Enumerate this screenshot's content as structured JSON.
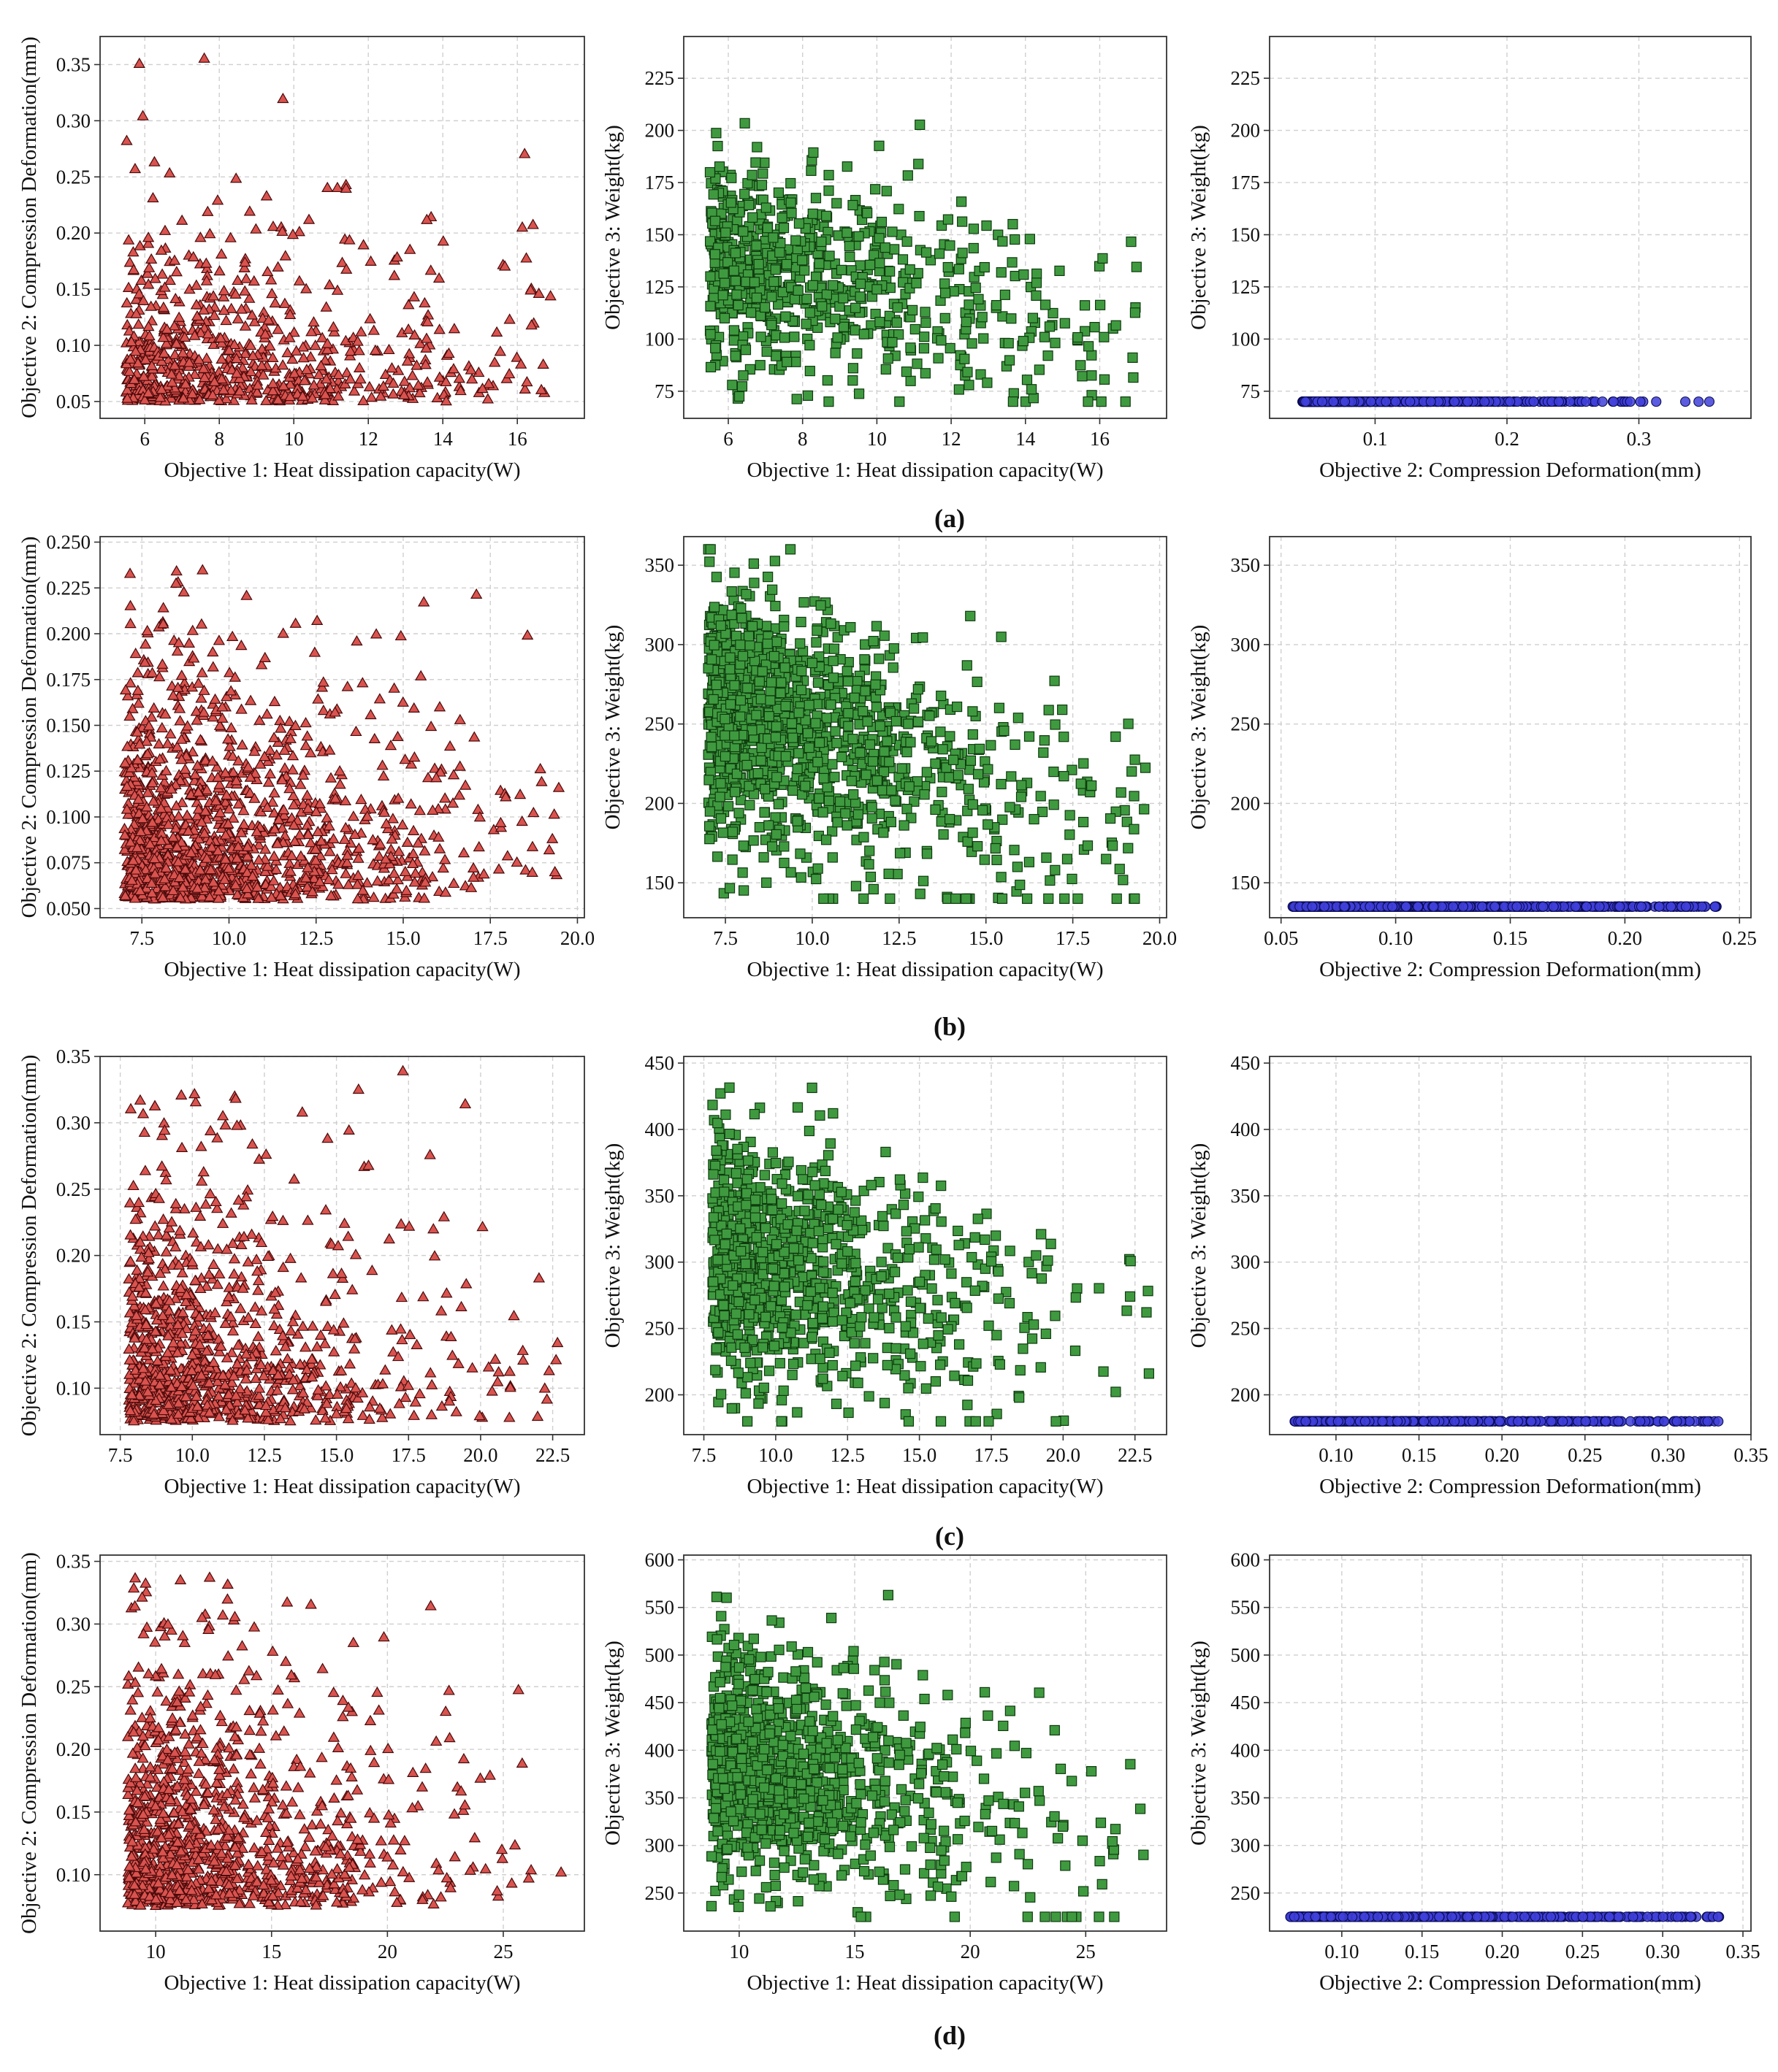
{
  "figure": {
    "rows": [
      {
        "label": "(a)"
      },
      {
        "label": "(b)"
      },
      {
        "label": "(c)"
      },
      {
        "label": "(d)"
      }
    ]
  },
  "colors": {
    "triangle_fill": "#d9534f",
    "triangle_edge": "#4a0a0a",
    "square_fill": "#3f9a3f",
    "square_edge": "#0f3a0f",
    "circle_fill": "#3f3fd9",
    "circle_edge": "#0a0a55",
    "grid": "#cfcfcf",
    "frame": "#333333"
  },
  "chart_data": [
    {
      "id": "a1",
      "row": 0,
      "col": 0,
      "type": "scatter",
      "marker": "triangle",
      "xlabel": "Objective 1: Heat dissipation capacity(W)",
      "ylabel": "Objective 2: Compression Deformation(mm)",
      "xlim": [
        4.8,
        17.8
      ],
      "ylim": [
        0.035,
        0.375
      ],
      "xticks": [
        {
          "v": 6,
          "t": "6"
        },
        {
          "v": 8,
          "t": "8"
        },
        {
          "v": 10,
          "t": "10"
        },
        {
          "v": 12,
          "t": "12"
        },
        {
          "v": 14,
          "t": "14"
        },
        {
          "v": 16,
          "t": "16"
        }
      ],
      "yticks": [
        {
          "v": 0.05,
          "t": "0.05"
        },
        {
          "v": 0.1,
          "t": "0.10"
        },
        {
          "v": 0.15,
          "t": "0.15"
        },
        {
          "v": 0.2,
          "t": "0.20"
        },
        {
          "v": 0.25,
          "t": "0.25"
        },
        {
          "v": 0.3,
          "t": "0.30"
        },
        {
          "v": 0.35,
          "t": "0.35"
        }
      ],
      "gen": {
        "kind": "scatter13",
        "n": 750,
        "seed": 11,
        "xmin": 5.5,
        "xmax": 17.0,
        "ymin": 0.05,
        "ymax": 0.36,
        "xdecay": 4.0,
        "ydecay": 0.05
      }
    },
    {
      "id": "a2",
      "row": 0,
      "col": 1,
      "type": "scatter",
      "marker": "square",
      "xlabel": "Objective 1: Heat dissipation capacity(W)",
      "ylabel": "Objective 3: Weight(kg)",
      "xlim": [
        4.8,
        17.8
      ],
      "ylim": [
        62,
        245
      ],
      "xticks": [
        {
          "v": 6,
          "t": "6"
        },
        {
          "v": 8,
          "t": "8"
        },
        {
          "v": 10,
          "t": "10"
        },
        {
          "v": 12,
          "t": "12"
        },
        {
          "v": 14,
          "t": "14"
        },
        {
          "v": 16,
          "t": "16"
        }
      ],
      "yticks": [
        {
          "v": 75,
          "t": "75"
        },
        {
          "v": 100,
          "t": "100"
        },
        {
          "v": 125,
          "t": "125"
        },
        {
          "v": 150,
          "t": "150"
        },
        {
          "v": 175,
          "t": "175"
        },
        {
          "v": 200,
          "t": "200"
        },
        {
          "v": 225,
          "t": "225"
        }
      ],
      "gen": {
        "kind": "scatter12",
        "n": 750,
        "seed": 12,
        "xmin": 5.5,
        "xmax": 17.0,
        "xdecay": 4.0,
        "ybase": 140,
        "yslope": -3.5,
        "ysd": 24,
        "ymin": 70,
        "ymax": 240
      }
    },
    {
      "id": "a3",
      "row": 0,
      "col": 2,
      "type": "scatter",
      "marker": "circle",
      "xlabel": "Objective 2: Compression Deformation(mm)",
      "ylabel": "Objective 3: Weight(kg)",
      "xlim": [
        0.02,
        0.385
      ],
      "ylim": [
        62,
        245
      ],
      "xticks": [
        {
          "v": 0.1,
          "t": "0.1"
        },
        {
          "v": 0.2,
          "t": "0.2"
        },
        {
          "v": 0.3,
          "t": "0.3"
        }
      ],
      "yticks": [
        {
          "v": 75,
          "t": "75"
        },
        {
          "v": 100,
          "t": "100"
        },
        {
          "v": 125,
          "t": "125"
        },
        {
          "v": 150,
          "t": "150"
        },
        {
          "v": 175,
          "t": "175"
        },
        {
          "v": 200,
          "t": "200"
        },
        {
          "v": 225,
          "t": "225"
        }
      ],
      "gen": {
        "kind": "front",
        "n": 900,
        "seed": 13,
        "xmin": 0.045,
        "xmax": 0.36,
        "xdecay": 0.06,
        "k": 10.5,
        "ymin": 70,
        "ymax": 240,
        "band": 0.12
      }
    },
    {
      "id": "b1",
      "row": 1,
      "col": 0,
      "type": "scatter",
      "marker": "triangle",
      "xlabel": "Objective 1: Heat dissipation capacity(W)",
      "ylabel": "Objective 2: Compression Deformation(mm)",
      "xlim": [
        6.3,
        20.2
      ],
      "ylim": [
        0.045,
        0.253
      ],
      "xticks": [
        {
          "v": 7.5,
          "t": "7.5"
        },
        {
          "v": 10.0,
          "t": "10.0"
        },
        {
          "v": 12.5,
          "t": "12.5"
        },
        {
          "v": 15.0,
          "t": "15.0"
        },
        {
          "v": 17.5,
          "t": "17.5"
        },
        {
          "v": 20.0,
          "t": "20.0"
        }
      ],
      "yticks": [
        {
          "v": 0.05,
          "t": "0.050"
        },
        {
          "v": 0.075,
          "t": "0.075"
        },
        {
          "v": 0.1,
          "t": "0.100"
        },
        {
          "v": 0.125,
          "t": "0.125"
        },
        {
          "v": 0.15,
          "t": "0.150"
        },
        {
          "v": 0.175,
          "t": "0.175"
        },
        {
          "v": 0.2,
          "t": "0.200"
        },
        {
          "v": 0.225,
          "t": "0.225"
        },
        {
          "v": 0.25,
          "t": "0.250"
        }
      ],
      "gen": {
        "kind": "scatter13",
        "n": 1300,
        "seed": 21,
        "xmin": 7.0,
        "xmax": 19.6,
        "ymin": 0.055,
        "ymax": 0.24,
        "xdecay": 3.5,
        "ydecay": 0.045
      }
    },
    {
      "id": "b2",
      "row": 1,
      "col": 1,
      "type": "scatter",
      "marker": "square",
      "xlabel": "Objective 1: Heat dissipation capacity(W)",
      "ylabel": "Objective 3: Weight(kg)",
      "xlim": [
        6.3,
        20.2
      ],
      "ylim": [
        128,
        368
      ],
      "xticks": [
        {
          "v": 7.5,
          "t": "7.5"
        },
        {
          "v": 10.0,
          "t": "10.0"
        },
        {
          "v": 12.5,
          "t": "12.5"
        },
        {
          "v": 15.0,
          "t": "15.0"
        },
        {
          "v": 17.5,
          "t": "17.5"
        },
        {
          "v": 20.0,
          "t": "20.0"
        }
      ],
      "yticks": [
        {
          "v": 150,
          "t": "150"
        },
        {
          "v": 200,
          "t": "200"
        },
        {
          "v": 250,
          "t": "250"
        },
        {
          "v": 300,
          "t": "300"
        },
        {
          "v": 350,
          "t": "350"
        }
      ],
      "gen": {
        "kind": "scatter12",
        "n": 1300,
        "seed": 22,
        "xmin": 7.0,
        "xmax": 19.6,
        "xdecay": 3.5,
        "ybase": 265,
        "yslope": -7.0,
        "ysd": 38,
        "ymin": 140,
        "ymax": 360
      }
    },
    {
      "id": "b3",
      "row": 1,
      "col": 2,
      "type": "scatter",
      "marker": "circle",
      "xlabel": "Objective 2: Compression Deformation(mm)",
      "ylabel": "Objective 3: Weight(kg)",
      "xlim": [
        0.045,
        0.255
      ],
      "ylim": [
        128,
        368
      ],
      "xticks": [
        {
          "v": 0.05,
          "t": "0.05"
        },
        {
          "v": 0.1,
          "t": "0.10"
        },
        {
          "v": 0.15,
          "t": "0.15"
        },
        {
          "v": 0.2,
          "t": "0.20"
        },
        {
          "v": 0.25,
          "t": "0.25"
        }
      ],
      "yticks": [
        {
          "v": 150,
          "t": "150"
        },
        {
          "v": 200,
          "t": "200"
        },
        {
          "v": 250,
          "t": "250"
        },
        {
          "v": 300,
          "t": "300"
        },
        {
          "v": 350,
          "t": "350"
        }
      ],
      "gen": {
        "kind": "front",
        "n": 1300,
        "seed": 23,
        "xmin": 0.055,
        "xmax": 0.24,
        "xdecay": 0.06,
        "k": 19.0,
        "ymin": 135,
        "ymax": 360,
        "band": 0.09
      }
    },
    {
      "id": "c1",
      "row": 2,
      "col": 0,
      "type": "scatter",
      "marker": "triangle",
      "xlabel": "Objective 1: Heat dissipation capacity(W)",
      "ylabel": "Objective 2: Compression Deformation(mm)",
      "xlim": [
        6.8,
        23.6
      ],
      "ylim": [
        0.065,
        0.35
      ],
      "xticks": [
        {
          "v": 7.5,
          "t": "7.5"
        },
        {
          "v": 10.0,
          "t": "10.0"
        },
        {
          "v": 12.5,
          "t": "12.5"
        },
        {
          "v": 15.0,
          "t": "15.0"
        },
        {
          "v": 17.5,
          "t": "17.5"
        },
        {
          "v": 20.0,
          "t": "20.0"
        },
        {
          "v": 22.5,
          "t": "22.5"
        }
      ],
      "yticks": [
        {
          "v": 0.1,
          "t": "0.10"
        },
        {
          "v": 0.15,
          "t": "0.15"
        },
        {
          "v": 0.2,
          "t": "0.20"
        },
        {
          "v": 0.25,
          "t": "0.25"
        },
        {
          "v": 0.3,
          "t": "0.30"
        },
        {
          "v": 0.35,
          "t": "0.35"
        }
      ],
      "gen": {
        "kind": "scatter13",
        "n": 1000,
        "seed": 31,
        "xmin": 7.8,
        "xmax": 23.0,
        "ymin": 0.075,
        "ymax": 0.34,
        "xdecay": 3.5,
        "ydecay": 0.06
      }
    },
    {
      "id": "c2",
      "row": 2,
      "col": 1,
      "type": "scatter",
      "marker": "square",
      "xlabel": "Objective 1: Heat dissipation capacity(W)",
      "ylabel": "Objective 3: Weight(kg)",
      "xlim": [
        6.8,
        23.6
      ],
      "ylim": [
        170,
        455
      ],
      "xticks": [
        {
          "v": 7.5,
          "t": "7.5"
        },
        {
          "v": 10.0,
          "t": "10.0"
        },
        {
          "v": 12.5,
          "t": "12.5"
        },
        {
          "v": 15.0,
          "t": "15.0"
        },
        {
          "v": 17.5,
          "t": "17.5"
        },
        {
          "v": 20.0,
          "t": "20.0"
        },
        {
          "v": 22.5,
          "t": "22.5"
        }
      ],
      "yticks": [
        {
          "v": 200,
          "t": "200"
        },
        {
          "v": 250,
          "t": "250"
        },
        {
          "v": 300,
          "t": "300"
        },
        {
          "v": 350,
          "t": "350"
        },
        {
          "v": 400,
          "t": "400"
        },
        {
          "v": 450,
          "t": "450"
        }
      ],
      "gen": {
        "kind": "scatter12",
        "n": 1000,
        "seed": 32,
        "xmin": 7.8,
        "xmax": 23.0,
        "xdecay": 3.5,
        "ybase": 310,
        "yslope": -5.0,
        "ysd": 45,
        "ymin": 180,
        "ymax": 445
      }
    },
    {
      "id": "c3",
      "row": 2,
      "col": 2,
      "type": "scatter",
      "marker": "circle",
      "xlabel": "Objective 2: Compression Deformation(mm)",
      "ylabel": "Objective 3: Weight(kg)",
      "xlim": [
        0.06,
        0.35
      ],
      "ylim": [
        170,
        455
      ],
      "xticks": [
        {
          "v": 0.1,
          "t": "0.10"
        },
        {
          "v": 0.15,
          "t": "0.15"
        },
        {
          "v": 0.2,
          "t": "0.20"
        },
        {
          "v": 0.25,
          "t": "0.25"
        },
        {
          "v": 0.3,
          "t": "0.30"
        },
        {
          "v": 0.35,
          "t": "0.35"
        }
      ],
      "yticks": [
        {
          "v": 200,
          "t": "200"
        },
        {
          "v": 250,
          "t": "250"
        },
        {
          "v": 300,
          "t": "300"
        },
        {
          "v": 350,
          "t": "350"
        },
        {
          "v": 400,
          "t": "400"
        },
        {
          "v": 450,
          "t": "450"
        }
      ],
      "gen": {
        "kind": "front",
        "n": 1000,
        "seed": 33,
        "xmin": 0.075,
        "xmax": 0.335,
        "xdecay": 0.07,
        "k": 32.0,
        "ymin": 180,
        "ymax": 445,
        "band": 0.09
      }
    },
    {
      "id": "d1",
      "row": 3,
      "col": 0,
      "type": "scatter",
      "marker": "triangle",
      "xlabel": "Objective 1: Heat dissipation capacity(W)",
      "ylabel": "Objective 2: Compression Deformation(mm)",
      "xlim": [
        7.6,
        28.5
      ],
      "ylim": [
        0.055,
        0.355
      ],
      "xticks": [
        {
          "v": 10,
          "t": "10"
        },
        {
          "v": 15,
          "t": "15"
        },
        {
          "v": 20,
          "t": "20"
        },
        {
          "v": 25,
          "t": "25"
        }
      ],
      "yticks": [
        {
          "v": 0.1,
          "t": "0.10"
        },
        {
          "v": 0.15,
          "t": "0.15"
        },
        {
          "v": 0.2,
          "t": "0.20"
        },
        {
          "v": 0.25,
          "t": "0.25"
        },
        {
          "v": 0.3,
          "t": "0.30"
        },
        {
          "v": 0.35,
          "t": "0.35"
        }
      ],
      "gen": {
        "kind": "scatter13",
        "n": 1100,
        "seed": 41,
        "xmin": 8.8,
        "xmax": 27.5,
        "ymin": 0.075,
        "ymax": 0.34,
        "xdecay": 4.5,
        "ydecay": 0.07
      }
    },
    {
      "id": "d2",
      "row": 3,
      "col": 1,
      "type": "scatter",
      "marker": "square",
      "xlabel": "Objective 1: Heat dissipation capacity(W)",
      "ylabel": "Objective 3: Weight(kg)",
      "xlim": [
        7.6,
        28.5
      ],
      "ylim": [
        210,
        605
      ],
      "xticks": [
        {
          "v": 10,
          "t": "10"
        },
        {
          "v": 15,
          "t": "15"
        },
        {
          "v": 20,
          "t": "20"
        },
        {
          "v": 25,
          "t": "25"
        }
      ],
      "yticks": [
        {
          "v": 250,
          "t": "250"
        },
        {
          "v": 300,
          "t": "300"
        },
        {
          "v": 350,
          "t": "350"
        },
        {
          "v": 400,
          "t": "400"
        },
        {
          "v": 450,
          "t": "450"
        },
        {
          "v": 500,
          "t": "500"
        },
        {
          "v": 550,
          "t": "550"
        },
        {
          "v": 600,
          "t": "600"
        }
      ],
      "gen": {
        "kind": "scatter12",
        "n": 1100,
        "seed": 42,
        "xmin": 8.8,
        "xmax": 27.5,
        "xdecay": 4.5,
        "ybase": 390,
        "yslope": -4.5,
        "ysd": 60,
        "ymin": 225,
        "ymax": 585
      }
    },
    {
      "id": "d3",
      "row": 3,
      "col": 2,
      "type": "scatter",
      "marker": "circle",
      "xlabel": "Objective 2: Compression Deformation(mm)",
      "ylabel": "Objective 3: Weight(kg)",
      "xlim": [
        0.055,
        0.355
      ],
      "ylim": [
        210,
        605
      ],
      "xticks": [
        {
          "v": 0.1,
          "t": "0.10"
        },
        {
          "v": 0.15,
          "t": "0.15"
        },
        {
          "v": 0.2,
          "t": "0.20"
        },
        {
          "v": 0.25,
          "t": "0.25"
        },
        {
          "v": 0.3,
          "t": "0.30"
        },
        {
          "v": 0.35,
          "t": "0.35"
        }
      ],
      "yticks": [
        {
          "v": 250,
          "t": "250"
        },
        {
          "v": 300,
          "t": "300"
        },
        {
          "v": 350,
          "t": "350"
        },
        {
          "v": 400,
          "t": "400"
        },
        {
          "v": 450,
          "t": "450"
        },
        {
          "v": 500,
          "t": "500"
        },
        {
          "v": 550,
          "t": "550"
        },
        {
          "v": 600,
          "t": "600"
        }
      ],
      "gen": {
        "kind": "front",
        "n": 1100,
        "seed": 43,
        "xmin": 0.068,
        "xmax": 0.34,
        "xdecay": 0.07,
        "k": 42.0,
        "ymin": 225,
        "ymax": 585,
        "band": 0.09
      }
    }
  ]
}
